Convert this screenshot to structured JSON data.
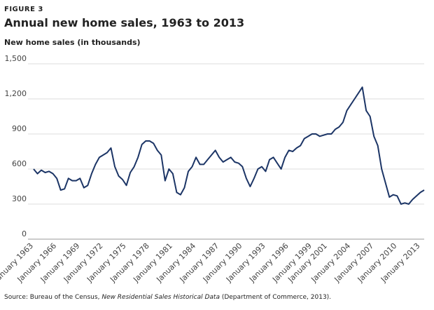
{
  "figure_label": "FIGURE 3",
  "chart_data": {
    "type": "line",
    "title": "Annual new home sales, 1963 to 2013",
    "ylabel": "New home sales (in thousands)",
    "source": {
      "prefix": "Source: Bureau of the Census, ",
      "italic": "New Residential Sales Historical Data",
      "suffix": " (Department of Commerce, 2013)."
    },
    "categories": [
      "January 1963",
      null,
      null,
      null,
      null,
      null,
      "January 1966",
      null,
      null,
      null,
      null,
      null,
      "January 1969",
      null,
      null,
      null,
      null,
      null,
      "January 1972",
      null,
      null,
      null,
      null,
      null,
      "January 1975",
      null,
      null,
      null,
      null,
      null,
      "January 1978",
      null,
      null,
      null,
      null,
      null,
      "January 1981",
      null,
      null,
      null,
      null,
      null,
      "January 1984",
      null,
      null,
      null,
      null,
      null,
      "January 1987",
      null,
      null,
      null,
      null,
      null,
      "January 1990",
      null,
      null,
      null,
      null,
      null,
      "January 1993",
      null,
      null,
      null,
      null,
      null,
      "January 1996",
      null,
      null,
      null,
      null,
      null,
      "January 1999",
      null,
      null,
      null,
      "January 2001",
      null,
      null,
      null,
      null,
      null,
      "January 2004",
      null,
      null,
      null,
      null,
      null,
      "January 2007",
      null,
      null,
      null,
      null,
      null,
      "January 2010",
      null,
      null,
      null,
      null,
      null,
      "January 2013",
      null
    ],
    "series": [
      {
        "name": "New home sales",
        "color": "#1c3566",
        "values": [
          600,
          560,
          590,
          570,
          580,
          560,
          520,
          420,
          430,
          520,
          500,
          500,
          520,
          440,
          460,
          560,
          640,
          700,
          720,
          740,
          780,
          620,
          540,
          510,
          460,
          570,
          620,
          700,
          810,
          840,
          840,
          820,
          760,
          720,
          500,
          600,
          560,
          400,
          380,
          440,
          580,
          620,
          700,
          640,
          640,
          680,
          720,
          760,
          700,
          660,
          680,
          700,
          660,
          650,
          620,
          520,
          450,
          520,
          600,
          620,
          580,
          680,
          700,
          650,
          600,
          700,
          760,
          750,
          780,
          800,
          860,
          880,
          900,
          900,
          880,
          890,
          900,
          900,
          940,
          960,
          1000,
          1100,
          1150,
          1200,
          1250,
          1300,
          1100,
          1050,
          880,
          800,
          600,
          480,
          360,
          380,
          370,
          300,
          310,
          300,
          340,
          370,
          400,
          420
        ]
      }
    ],
    "ylim": [
      0,
      1500
    ],
    "yticks": [
      0,
      300,
      600,
      900,
      {
        "value": 1200,
        "label": "1,200"
      },
      {
        "value": 1500,
        "label": "1,500"
      }
    ],
    "grid": true
  }
}
